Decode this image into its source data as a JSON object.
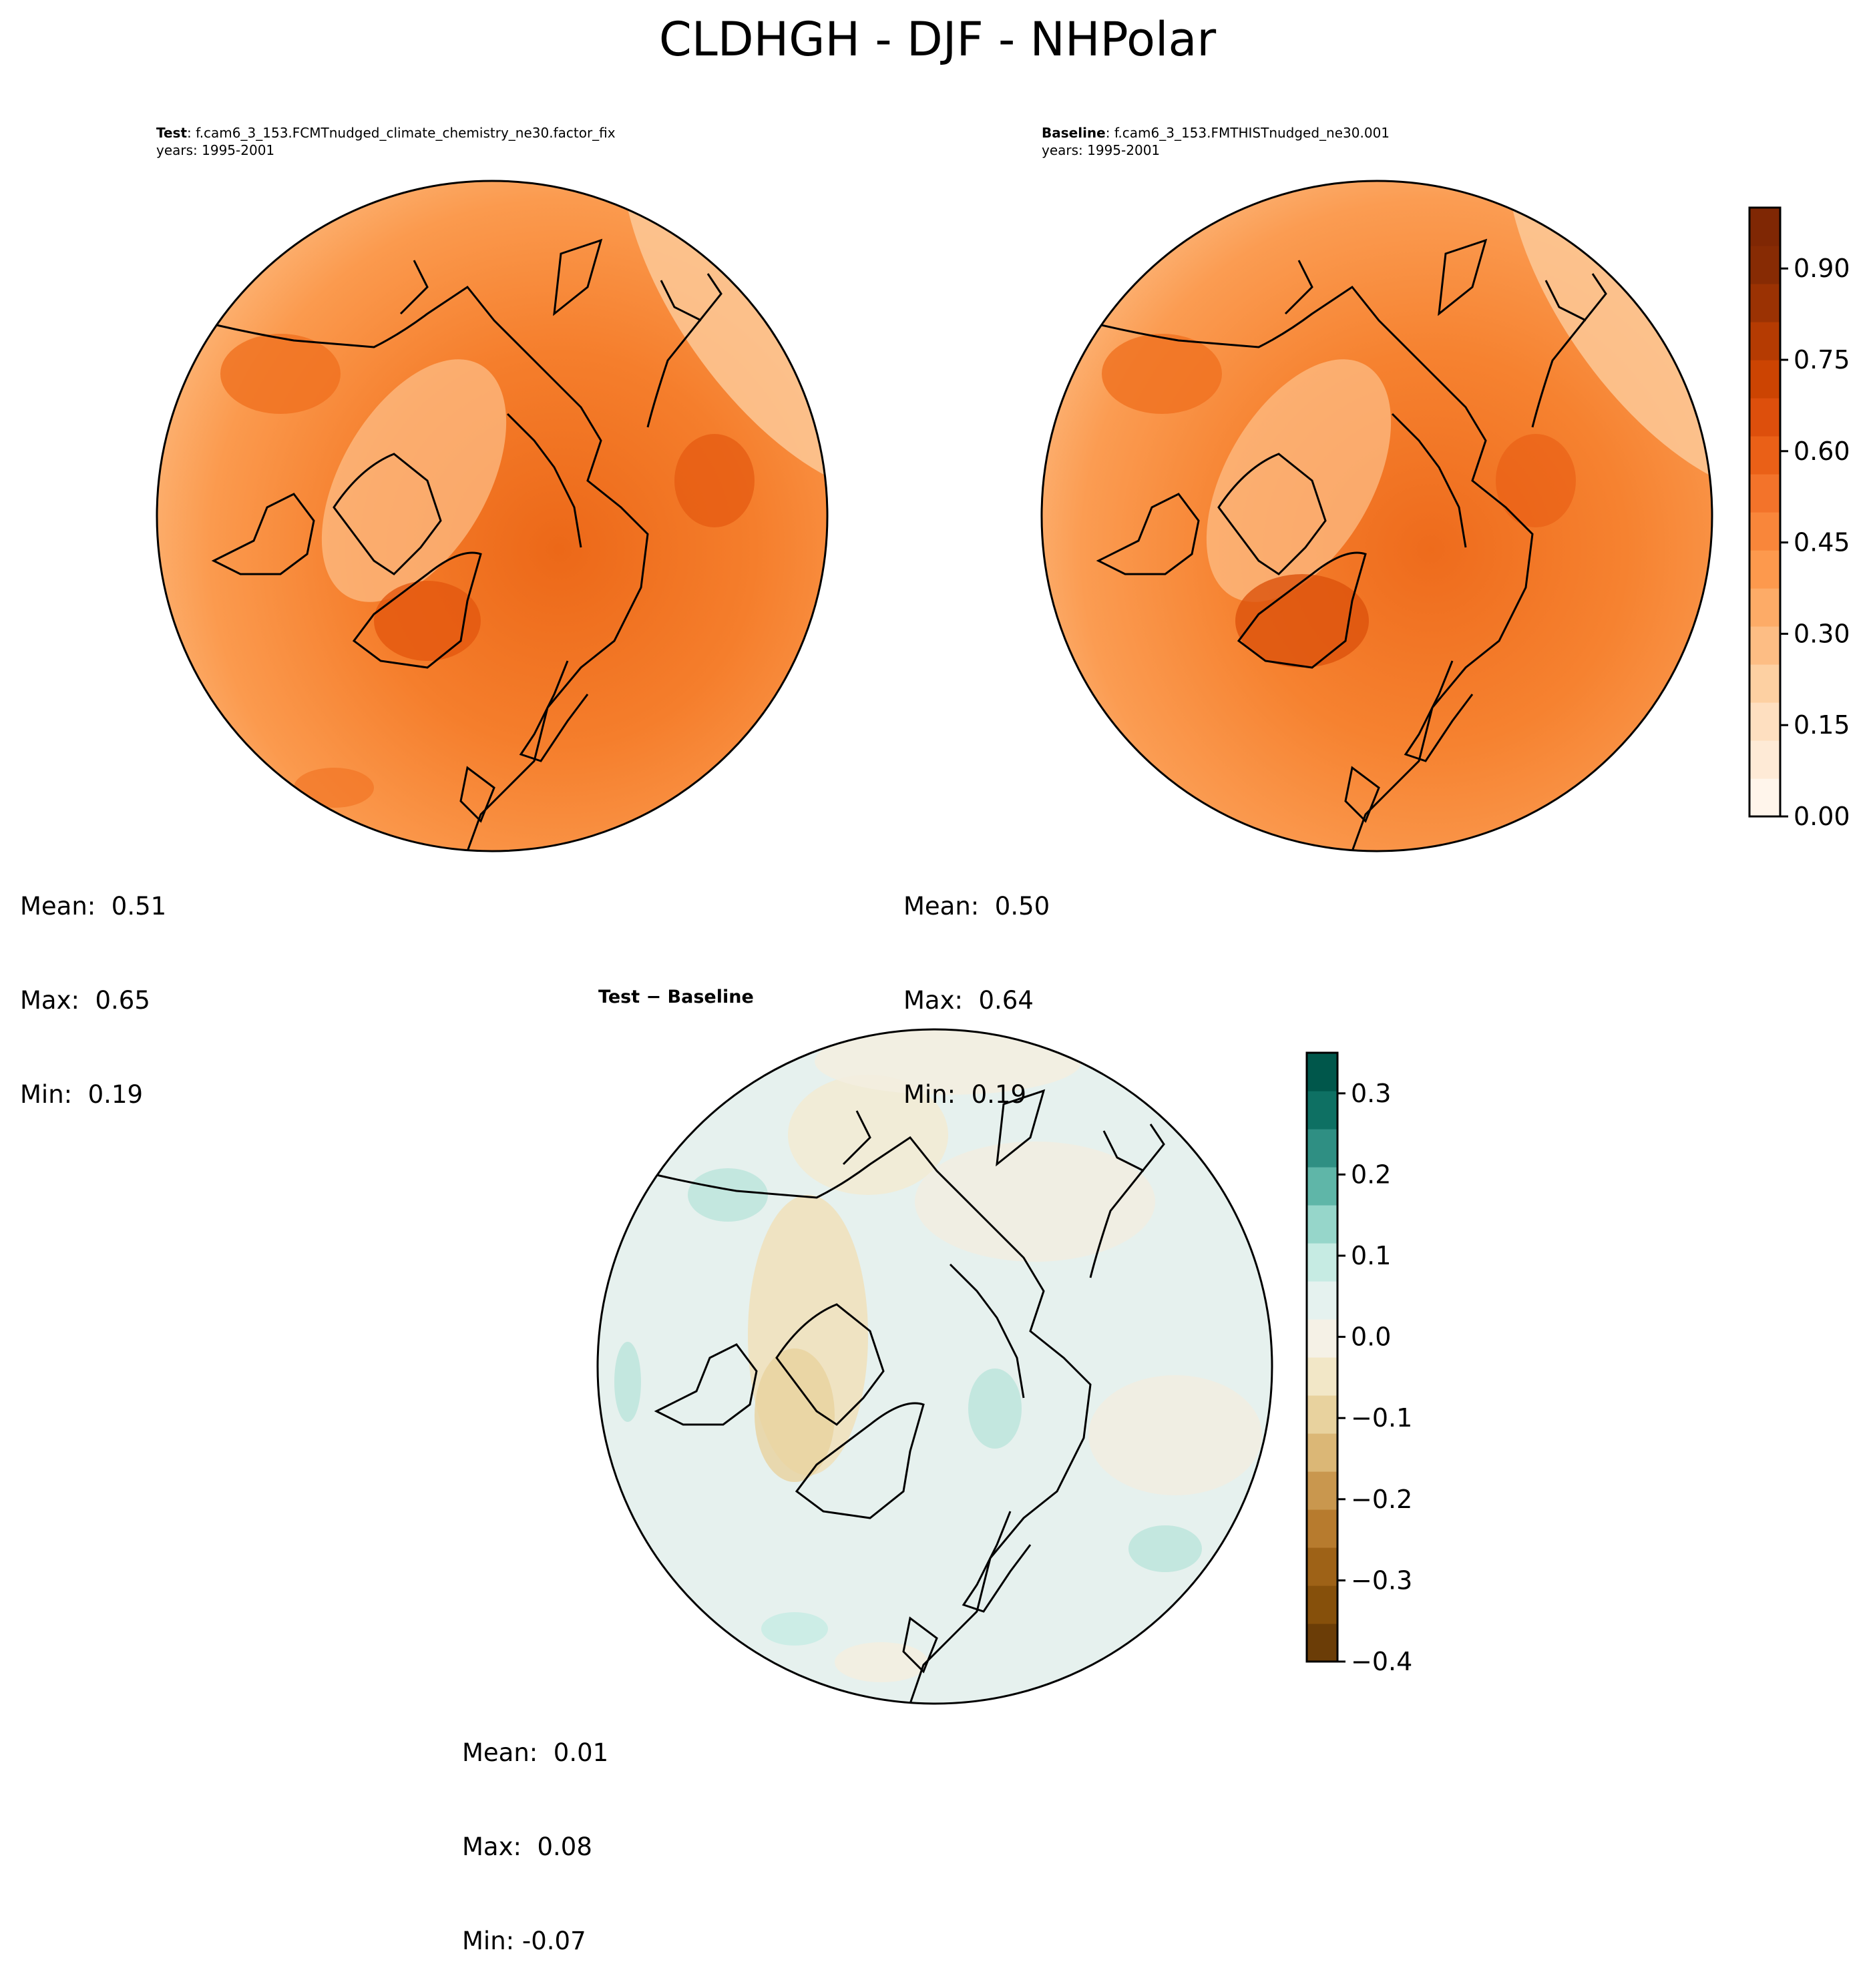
{
  "figure": {
    "title": "CLDHGH - DJF - NHPolar"
  },
  "panels": {
    "test": {
      "label_bold": "Test",
      "label_rest": ": f.cam6_3_153.FCMTnudged_climate_chemistry_ne30.factor_fix",
      "years": "years: 1995-2001",
      "stats": {
        "mean": "Mean:  0.51",
        "max": "Max:  0.65",
        "min": "Min:  0.19"
      }
    },
    "baseline": {
      "label_bold": "Baseline",
      "label_rest": ": f.cam6_3_153.FMTHISTnudged_ne30.001",
      "years": "years: 1995-2001",
      "stats": {
        "mean": "Mean:  0.50",
        "max": "Max:  0.64",
        "min": "Min:  0.19"
      }
    },
    "difference": {
      "label": "Test − Baseline",
      "stats": {
        "mean": "Mean:  0.01",
        "max": "Max:  0.08",
        "min": "Min: -0.07"
      }
    }
  },
  "colorbars": {
    "main": {
      "range": [
        0.0,
        1.0
      ],
      "ticks": [
        "0.00",
        "0.15",
        "0.30",
        "0.45",
        "0.60",
        "0.75",
        "0.90"
      ],
      "colors": [
        "#fff5eb",
        "#feead6",
        "#fedfc0",
        "#fdd0a2",
        "#fdbd84",
        "#fdab67",
        "#fd994d",
        "#f9863a",
        "#f3732a",
        "#ea6017",
        "#dd4f0c",
        "#cc4402",
        "#b53b02",
        "#9b3203",
        "#872b04",
        "#7f2704"
      ]
    },
    "diff": {
      "range": [
        -0.4,
        0.35
      ],
      "ticks": [
        "−0.4",
        "−0.3",
        "−0.2",
        "−0.1",
        "0.0",
        "0.1",
        "0.2",
        "0.3"
      ],
      "colors": [
        "#6b3d07",
        "#86500b",
        "#9e6217",
        "#b77b2e",
        "#c9974e",
        "#dbb776",
        "#e8d29e",
        "#f2e7c7",
        "#f5f1e6",
        "#e5f2ef",
        "#c6ebe3",
        "#96d6ca",
        "#5fb6a8",
        "#2f8f83",
        "#0e7063",
        "#00574b"
      ]
    }
  },
  "map_fields": {
    "test": {
      "base_color": "#fb9548",
      "mean": 0.51,
      "max": 0.65,
      "min": 0.19
    },
    "baseline": {
      "base_color": "#fa9244",
      "mean": 0.5,
      "max": 0.64,
      "min": 0.19
    },
    "difference": {
      "base_color": "#e6f1ee",
      "mean": 0.01,
      "max": 0.08,
      "min": -0.07
    }
  }
}
